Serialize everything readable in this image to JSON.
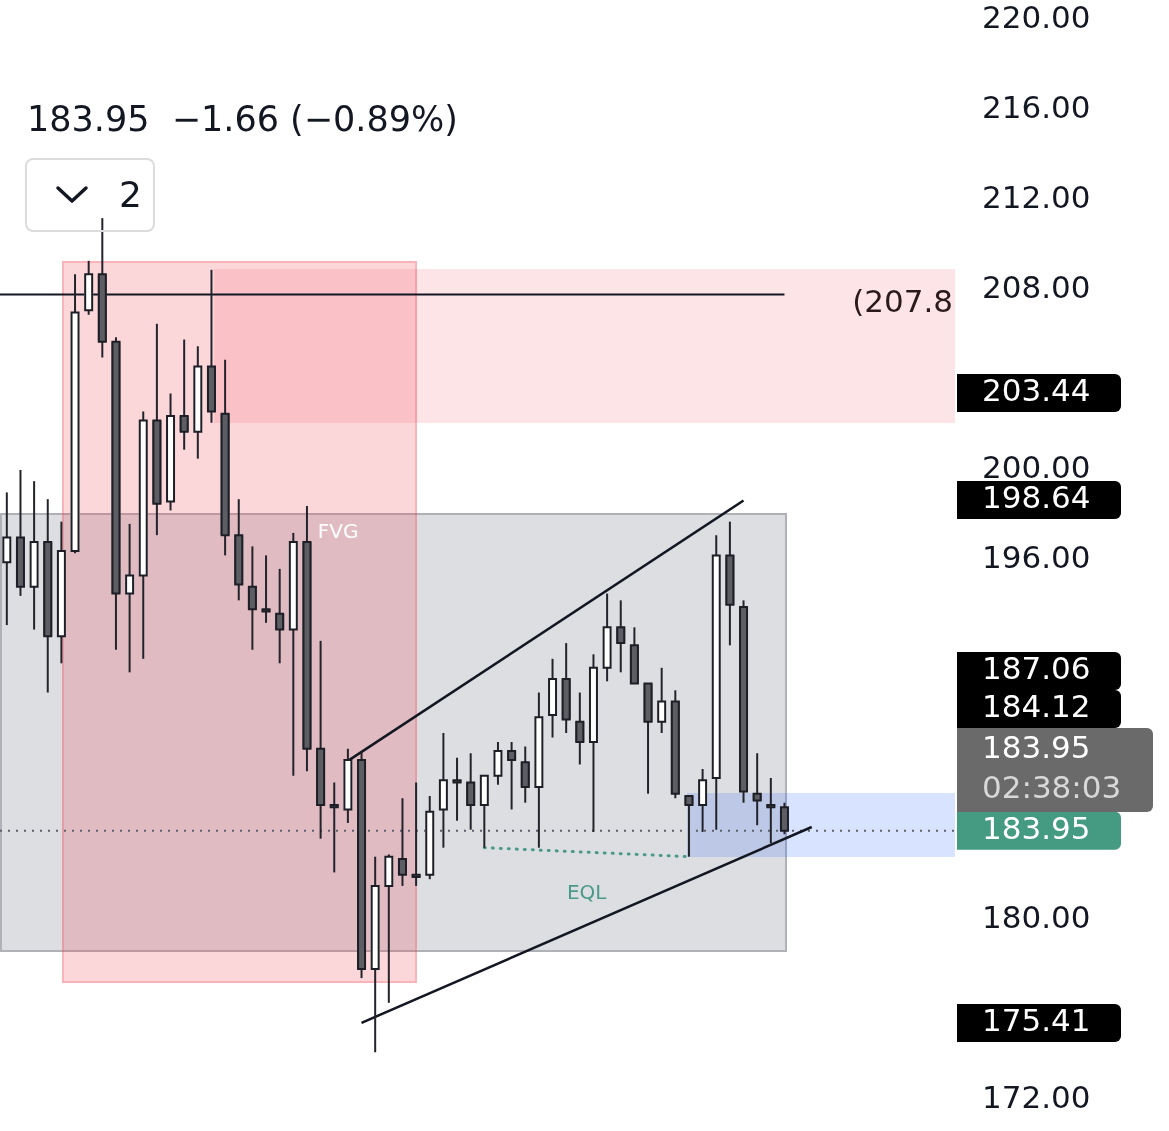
{
  "chart_data": {
    "type": "candlestick",
    "subtitle": "183.95  −1.66 (−0.89%)",
    "categories": [
      null,
      null,
      null,
      null,
      null,
      null,
      null,
      null,
      null,
      null,
      null,
      null,
      null,
      null,
      null,
      null,
      null,
      null,
      null,
      null,
      null,
      null,
      null,
      null,
      null,
      null,
      null,
      null,
      null,
      null,
      null,
      null,
      null,
      null,
      null,
      null,
      null,
      null,
      null,
      null,
      null,
      null,
      null,
      null,
      null,
      null,
      null,
      null,
      null,
      null,
      null,
      null,
      null,
      null,
      null,
      null,
      null,
      null,
      null,
      null,
      null,
      null,
      null,
      null,
      null,
      null,
      null,
      null,
      null,
      null
    ],
    "ohlc": [
      [
        195.9,
        199.0,
        193.1,
        197.0
      ],
      [
        197.0,
        200.0,
        194.4,
        194.8
      ],
      [
        194.8,
        199.5,
        192.9,
        196.8
      ],
      [
        196.8,
        198.7,
        190.1,
        192.6
      ],
      [
        192.6,
        197.7,
        191.4,
        196.4
      ],
      [
        196.4,
        208.7,
        196.3,
        207.0
      ],
      [
        207.1,
        209.3,
        206.9,
        208.7
      ],
      [
        208.7,
        211.2,
        205.0,
        205.7
      ],
      [
        205.7,
        205.9,
        192.0,
        194.5
      ],
      [
        194.5,
        197.6,
        191.0,
        195.3
      ],
      [
        195.3,
        202.6,
        191.6,
        202.2
      ],
      [
        202.2,
        206.5,
        197.1,
        198.5
      ],
      [
        198.6,
        203.4,
        198.2,
        202.4
      ],
      [
        202.4,
        205.8,
        200.9,
        201.7
      ],
      [
        201.7,
        205.5,
        200.5,
        204.6
      ],
      [
        204.6,
        208.9,
        202.1,
        202.6
      ],
      [
        202.5,
        204.9,
        196.2,
        197.1
      ],
      [
        197.1,
        198.7,
        194.2,
        194.9
      ],
      [
        194.8,
        196.6,
        192.0,
        193.8
      ],
      [
        193.8,
        196.2,
        193.2,
        193.7
      ],
      [
        193.6,
        195.6,
        191.4,
        192.9
      ],
      [
        192.9,
        197.2,
        186.4,
        196.8
      ],
      [
        196.8,
        198.4,
        186.6,
        187.6
      ],
      [
        187.6,
        192.4,
        183.6,
        185.1
      ],
      [
        185.1,
        186.1,
        182.1,
        185.0
      ],
      [
        184.9,
        187.6,
        184.3,
        187.1
      ],
      [
        187.1,
        187.5,
        177.4,
        177.8
      ],
      [
        177.8,
        182.8,
        174.1,
        181.5
      ],
      [
        181.5,
        182.9,
        176.3,
        182.8
      ],
      [
        182.7,
        185.4,
        181.5,
        182.0
      ],
      [
        182.0,
        186.1,
        181.5,
        181.9
      ],
      [
        182.0,
        185.5,
        181.8,
        184.8
      ],
      [
        184.9,
        188.3,
        183.2,
        186.2
      ],
      [
        186.2,
        187.2,
        184.4,
        186.1
      ],
      [
        186.1,
        187.4,
        184.0,
        185.1
      ],
      [
        185.1,
        186.4,
        183.2,
        186.4
      ],
      [
        186.4,
        187.9,
        186.0,
        187.5
      ],
      [
        187.5,
        187.9,
        184.9,
        187.1
      ],
      [
        187.0,
        187.7,
        185.2,
        185.9
      ],
      [
        185.9,
        190.1,
        183.2,
        189.0
      ],
      [
        189.1,
        191.6,
        188.1,
        190.7
      ],
      [
        190.7,
        192.3,
        188.3,
        188.9
      ],
      [
        188.8,
        190.1,
        186.9,
        187.9
      ],
      [
        187.9,
        191.8,
        183.9,
        191.2
      ],
      [
        191.2,
        194.5,
        190.6,
        193.0
      ],
      [
        193.0,
        194.2,
        191.0,
        192.3
      ],
      [
        192.2,
        193.0,
        190.5,
        190.5
      ],
      [
        190.5,
        190.5,
        185.6,
        188.8
      ],
      [
        188.8,
        191.2,
        188.3,
        189.7
      ],
      [
        189.7,
        190.2,
        185.4,
        185.6
      ],
      [
        185.5,
        185.5,
        182.8,
        185.1
      ],
      [
        185.1,
        186.7,
        183.9,
        186.2
      ],
      [
        186.3,
        197.1,
        184.0,
        196.2
      ],
      [
        196.2,
        197.7,
        192.2,
        194.0
      ],
      [
        193.9,
        194.2,
        185.2,
        185.7
      ],
      [
        185.6,
        187.4,
        184.2,
        185.3
      ],
      [
        185.1,
        186.3,
        183.4,
        185.0
      ],
      [
        185.0,
        185.2,
        183.8,
        183.95
      ],
      null,
      null,
      null,
      null,
      null,
      null,
      null,
      null,
      null,
      null,
      null,
      null
    ],
    "series": [
      {
        "type": "line",
        "color": "#131722",
        "values": [
          null,
          null,
          null,
          null,
          null,
          null,
          null,
          null,
          null,
          null,
          null,
          null,
          null,
          null,
          null,
          null,
          null,
          null,
          null,
          null,
          null,
          null,
          null,
          null,
          null,
          187.06,
          null,
          null,
          null,
          null,
          null,
          null,
          null,
          null,
          null,
          null,
          null,
          null,
          null,
          null,
          null,
          null,
          null,
          null,
          null,
          null,
          null,
          null,
          null,
          null,
          null,
          null,
          null,
          null,
          198.64,
          null,
          null,
          null,
          null,
          null,
          null,
          null,
          null,
          null,
          null,
          null,
          null,
          null,
          null,
          null
        ]
      },
      {
        "type": "line",
        "color": "#131722",
        "values": [
          null,
          null,
          null,
          null,
          null,
          null,
          null,
          null,
          null,
          null,
          null,
          null,
          null,
          null,
          null,
          null,
          null,
          null,
          null,
          null,
          null,
          null,
          null,
          null,
          null,
          null,
          175.41,
          null,
          null,
          null,
          null,
          null,
          null,
          null,
          null,
          null,
          null,
          null,
          null,
          null,
          null,
          null,
          null,
          null,
          null,
          null,
          null,
          null,
          null,
          null,
          null,
          null,
          null,
          null,
          null,
          null,
          null,
          null,
          null,
          184.12,
          null,
          null,
          null,
          null,
          null,
          null,
          null,
          null,
          null,
          null
        ]
      },
      {
        "type": "line",
        "name": "EQL",
        "color": "#4a9a8a",
        "line_style": "dotted",
        "values": [
          null,
          null,
          null,
          null,
          null,
          null,
          null,
          null,
          null,
          null,
          null,
          null,
          null,
          null,
          null,
          null,
          null,
          null,
          null,
          null,
          null,
          null,
          null,
          null,
          null,
          null,
          null,
          null,
          null,
          null,
          null,
          null,
          null,
          null,
          null,
          183.2,
          null,
          null,
          null,
          null,
          null,
          null,
          null,
          null,
          null,
          null,
          null,
          null,
          null,
          null,
          182.8,
          null,
          null,
          null,
          null,
          null,
          null,
          null,
          null,
          null,
          null,
          null,
          null,
          null,
          null,
          null,
          null,
          null,
          null,
          null
        ]
      }
    ],
    "ylim": [
      170.6,
      220.9
    ],
    "yticks": [
      {
        "value": 172,
        "label": "172.00"
      },
      {
        "value": 180,
        "label": "180.00"
      },
      {
        "value": 196,
        "label": "196.00"
      },
      {
        "value": 200,
        "label": "200.00"
      },
      {
        "value": 208,
        "label": "208.00"
      },
      {
        "value": 212,
        "label": "212.00"
      },
      {
        "value": 216,
        "label": "216.00"
      },
      {
        "value": 220,
        "label": "220.00"
      }
    ],
    "ref_lines": [
      {
        "axis": "y",
        "value": 207.8,
        "label": "(207.8",
        "color": "#131722"
      },
      {
        "axis": "y",
        "value": 183.95,
        "label": "183.95",
        "color": "#5d606b",
        "line_style": "dotted"
      }
    ],
    "annotations": [
      "FVG",
      "2",
      "203.44",
      "198.64",
      "187.06",
      "184.12",
      "183.95",
      "02:38:03",
      "175.41"
    ]
  }
}
